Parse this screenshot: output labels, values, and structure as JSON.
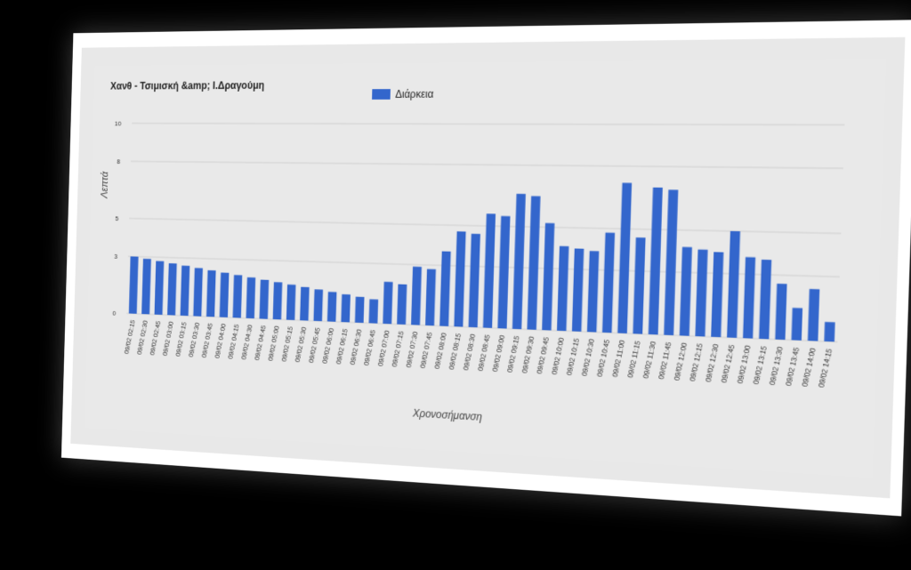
{
  "chart_data": {
    "type": "bar",
    "title": "Χανθ - Τσιμισκή &amp; Ι.Δραγούμη",
    "xlabel": "Χρονοσήμανση",
    "ylabel": "Λεπτά",
    "ylim": [
      0,
      10
    ],
    "yticks": [
      0,
      3,
      5,
      8,
      10
    ],
    "grid": true,
    "legend_position": "top-center",
    "colors": {
      "series": "#3366cc",
      "background": "#e9e9e9",
      "grid": "#cfcfcf"
    },
    "categories": [
      "09/02 02:15",
      "09/02 02:30",
      "09/02 02:45",
      "09/02 03:00",
      "09/02 03:15",
      "09/02 03:30",
      "09/02 03:45",
      "09/02 04:00",
      "09/02 04:15",
      "09/02 04:30",
      "09/02 04:45",
      "09/02 05:00",
      "09/02 05:15",
      "09/02 05:30",
      "09/02 05:45",
      "09/02 06:00",
      "09/02 06:15",
      "09/02 06:30",
      "09/02 06:45",
      "09/02 07:00",
      "09/02 07:15",
      "09/02 07:30",
      "09/02 07:45",
      "09/02 08:00",
      "09/02 08:15",
      "09/02 08:30",
      "09/02 08:45",
      "09/02 09:00",
      "09/02 09:15",
      "09/02 09:30",
      "09/02 09:45",
      "09/02 10:00",
      "09/02 10:15",
      "09/02 10:30",
      "09/02 10:45",
      "09/02 11:00",
      "09/02 11:15",
      "09/02 11:30",
      "09/02 11:45",
      "09/02 12:00",
      "09/02 12:15",
      "09/02 12:30",
      "09/02 12:45",
      "09/02 13:00",
      "09/02 13:15",
      "09/02 13:30",
      "09/02 13:45",
      "09/02 14:00",
      "09/02 14:15"
    ],
    "series": [
      {
        "name": "Διάρκεια",
        "values": [
          3.0,
          2.9,
          2.8,
          2.7,
          2.6,
          2.5,
          2.4,
          2.3,
          2.2,
          2.1,
          2.0,
          1.9,
          1.8,
          1.7,
          1.6,
          1.5,
          1.4,
          1.3,
          1.2,
          2.1,
          2.0,
          2.9,
          2.8,
          3.7,
          4.7,
          4.6,
          5.6,
          5.5,
          6.6,
          6.5,
          5.2,
          4.1,
          4.0,
          3.9,
          4.8,
          7.2,
          4.6,
          7.0,
          6.9,
          4.2,
          4.1,
          4.0,
          5.0,
          3.8,
          3.7,
          2.6,
          1.5,
          2.4,
          0.9
        ]
      }
    ]
  }
}
